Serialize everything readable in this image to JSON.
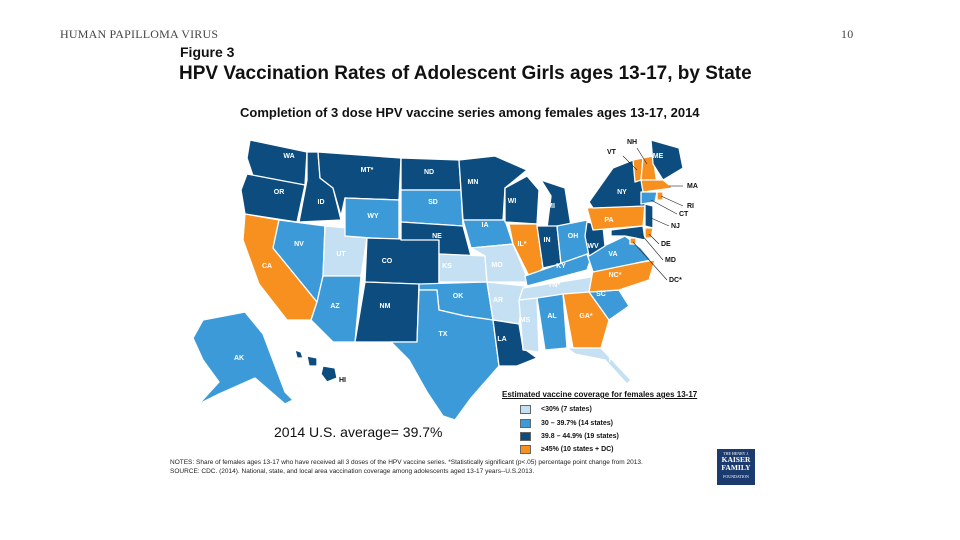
{
  "header": {
    "title": "HUMAN PAPILLOMA VIRUS",
    "page_number": "10"
  },
  "figure": {
    "label": "Figure 3",
    "title": "HPV Vaccination Rates of Adolescent Girls ages 13-17, by State",
    "subtitle": "Completion of 3 dose HPV vaccine series among females ages 13-17, 2014",
    "average": "2014 U.S. average=  39.7%"
  },
  "colors": {
    "lt30": "#c5e0f2",
    "r30_39": "#3d9ad8",
    "r39_44": "#0c4c7e",
    "ge45": "#f7901e"
  },
  "legend": {
    "title": "Estimated vaccine coverage for females ages 13-17",
    "items": [
      {
        "label": "<30% (7 states)",
        "color": "#c5e0f2"
      },
      {
        "label": "30 – 39.7% (14 states)",
        "color": "#3d9ad8"
      },
      {
        "label": "39.8 – 44.9% (19 states)",
        "color": "#0c4c7e"
      },
      {
        "label": "≥45% (10 states + DC)",
        "color": "#f7901e"
      }
    ]
  },
  "chart_data": {
    "type": "choropleth",
    "title": "Completion of 3 dose HPV vaccine series among females ages 13-17, 2014",
    "states": [
      {
        "code": "WA",
        "label": "WA",
        "category": "39.8-44.9%"
      },
      {
        "code": "OR",
        "label": "OR",
        "category": "39.8-44.9%"
      },
      {
        "code": "CA",
        "label": "CA",
        "category": ">=45%"
      },
      {
        "code": "ID",
        "label": "ID",
        "category": "39.8-44.9%"
      },
      {
        "code": "NV",
        "label": "NV",
        "category": "30-39.7%"
      },
      {
        "code": "UT",
        "label": "UT",
        "category": "<30%"
      },
      {
        "code": "AZ",
        "label": "AZ",
        "category": "30-39.7%"
      },
      {
        "code": "MT",
        "label": "MT*",
        "category": "39.8-44.9%"
      },
      {
        "code": "WY",
        "label": "WY",
        "category": "30-39.7%"
      },
      {
        "code": "CO",
        "label": "CO",
        "category": "39.8-44.9%"
      },
      {
        "code": "NM",
        "label": "NM",
        "category": "39.8-44.9%"
      },
      {
        "code": "ND",
        "label": "ND",
        "category": "39.8-44.9%"
      },
      {
        "code": "SD",
        "label": "SD",
        "category": "30-39.7%"
      },
      {
        "code": "NE",
        "label": "NE",
        "category": "39.8-44.9%"
      },
      {
        "code": "KS",
        "label": "KS",
        "category": "<30%"
      },
      {
        "code": "OK",
        "label": "OK",
        "category": "30-39.7%"
      },
      {
        "code": "TX",
        "label": "TX",
        "category": "30-39.7%"
      },
      {
        "code": "MN",
        "label": "MN",
        "category": "39.8-44.9%"
      },
      {
        "code": "IA",
        "label": "IA",
        "category": "30-39.7%"
      },
      {
        "code": "MO",
        "label": "MO",
        "category": "<30%"
      },
      {
        "code": "AR",
        "label": "AR",
        "category": "<30%"
      },
      {
        "code": "LA",
        "label": "LA",
        "category": "39.8-44.9%"
      },
      {
        "code": "WI",
        "label": "WI",
        "category": "39.8-44.9%"
      },
      {
        "code": "IL",
        "label": "IL*",
        "category": ">=45%"
      },
      {
        "code": "MI",
        "label": "MI",
        "category": "39.8-44.9%"
      },
      {
        "code": "IN",
        "label": "IN",
        "category": "39.8-44.9%"
      },
      {
        "code": "OH",
        "label": "OH",
        "category": "30-39.7%"
      },
      {
        "code": "KY",
        "label": "KY",
        "category": "30-39.7%"
      },
      {
        "code": "TN",
        "label": "TN*",
        "category": "<30%"
      },
      {
        "code": "MS",
        "label": "MS",
        "category": "<30%"
      },
      {
        "code": "AL",
        "label": "AL",
        "category": "30-39.7%"
      },
      {
        "code": "GA",
        "label": "GA*",
        "category": ">=45%"
      },
      {
        "code": "FL",
        "label": "FL",
        "category": "<30%"
      },
      {
        "code": "SC",
        "label": "SC",
        "category": "30-39.7%"
      },
      {
        "code": "NC",
        "label": "NC*",
        "category": ">=45%"
      },
      {
        "code": "VA",
        "label": "VA",
        "category": "30-39.7%"
      },
      {
        "code": "WV",
        "label": "WV",
        "category": "39.8-44.9%"
      },
      {
        "code": "PA",
        "label": "PA",
        "category": ">=45%"
      },
      {
        "code": "NY",
        "label": "NY",
        "category": "39.8-44.9%"
      },
      {
        "code": "VT",
        "label": "VT",
        "category": ">=45%"
      },
      {
        "code": "NH",
        "label": "NH",
        "category": ">=45%"
      },
      {
        "code": "ME",
        "label": "ME",
        "category": "39.8-44.9%"
      },
      {
        "code": "MA",
        "label": "MA",
        "category": ">=45%"
      },
      {
        "code": "RI",
        "label": "RI",
        "category": ">=45%"
      },
      {
        "code": "CT",
        "label": "CT",
        "category": "30-39.7%"
      },
      {
        "code": "NJ",
        "label": "NJ",
        "category": "39.8-44.9%"
      },
      {
        "code": "DE",
        "label": "DE",
        "category": ">=45%"
      },
      {
        "code": "MD",
        "label": "MD",
        "category": "39.8-44.9%"
      },
      {
        "code": "DC",
        "label": "DC*",
        "category": ">=45%"
      },
      {
        "code": "AK",
        "label": "AK",
        "category": "30-39.7%"
      },
      {
        "code": "HI",
        "label": "HI",
        "category": "39.8-44.9%"
      }
    ]
  },
  "notes": {
    "line1": "NOTES: Share of females ages 13-17 who have received all 3 doses of the HPV vaccine series. *Statistically significant  (p<.05) percentage point change from 2013.",
    "line2": "SOURCE: CDC. (2014). National, state, and local area vaccination coverage among adolescents aged 13-17 years--U.S.2013."
  },
  "logo": {
    "line1": "THE HENRY J.",
    "line2": "KAISER",
    "line3": "FAMILY",
    "line4": "FOUNDATION"
  }
}
